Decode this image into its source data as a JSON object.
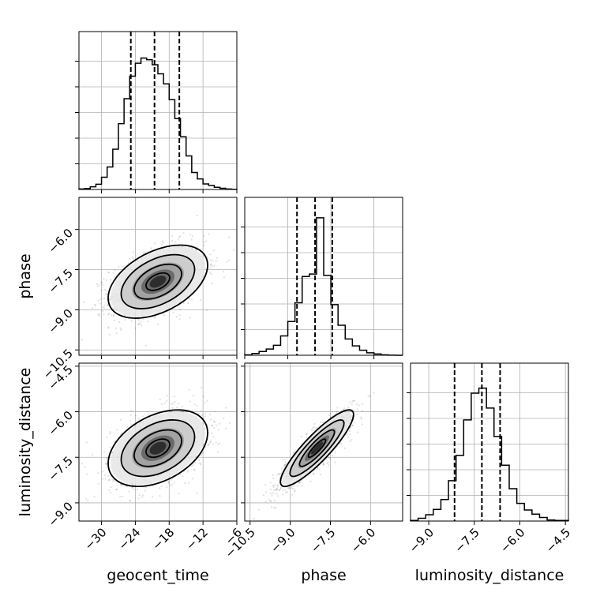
{
  "chart_data": {
    "type": "corner",
    "parameters": [
      "geocent_time",
      "phase",
      "luminosity_distance"
    ],
    "grid": true,
    "panels": {
      "hist_geocent_time": {
        "type": "histogram",
        "xlim": [
          -34,
          -6
        ],
        "bin_edges": [
          -34,
          -33,
          -32,
          -31,
          -30,
          -29,
          -28,
          -27,
          -26,
          -25,
          -24,
          -23,
          -22,
          -21,
          -20,
          -19,
          -18,
          -17,
          -16,
          -15,
          -14,
          -13,
          -12,
          -11,
          -10,
          -9,
          -8,
          -7,
          -6
        ],
        "counts": [
          0.2,
          0.4,
          1.1,
          2.2,
          5.1,
          9.4,
          16.8,
          27.5,
          37.9,
          47.3,
          52.7,
          54.9,
          54.2,
          52.1,
          48.3,
          44.1,
          37.5,
          29.6,
          22.0,
          14.0,
          7.1,
          4.4,
          2.3,
          1.7,
          0.9,
          0.5,
          0.2,
          0.1
        ],
        "ylim": [
          0,
          60
        ],
        "quantiles": [
          -24.8,
          -20.6,
          -16.2
        ]
      },
      "hist_phase": {
        "type": "histogram",
        "xlim": [
          -10.5,
          -5.0
        ],
        "bin_edges": [
          -10.5,
          -10.25,
          -10.0,
          -9.75,
          -9.5,
          -9.25,
          -9.0,
          -8.75,
          -8.5,
          -8.25,
          -8.0,
          -7.75,
          -7.5,
          -7.25,
          -7.0,
          -6.75,
          -6.5,
          -6.25,
          -6.0,
          -5.75,
          -5.5,
          -5.25,
          -5.0
        ],
        "counts": [
          0.3,
          1.4,
          3.0,
          5.0,
          8.0,
          15.5,
          27.0,
          42.0,
          63.0,
          65.0,
          110.0,
          64.0,
          40.5,
          24.0,
          13.0,
          7.5,
          4.0,
          2.0,
          1.0,
          0.3,
          0.1,
          0.0
        ],
        "ylim": [
          0,
          115
        ],
        "quantiles": [
          -8.68,
          -8.05,
          -7.45
        ]
      },
      "hist_luminosity_distance": {
        "type": "histogram",
        "xlim": [
          -9.6,
          -4.4
        ],
        "bin_edges": [
          -9.6,
          -9.35,
          -9.1,
          -8.85,
          -8.6,
          -8.35,
          -8.1,
          -7.85,
          -7.6,
          -7.35,
          -7.1,
          -6.85,
          -6.6,
          -6.35,
          -6.1,
          -5.85,
          -5.6,
          -5.35,
          -5.1,
          -4.85,
          -4.6,
          -4.4
        ],
        "counts": [
          0.2,
          1.0,
          2.3,
          4.2,
          7.8,
          14.6,
          23.8,
          36.6,
          46.3,
          48.1,
          40.9,
          30.6,
          20.2,
          11.7,
          6.4,
          4.0,
          2.5,
          1.3,
          0.4,
          0.2,
          0.2
        ],
        "ylim": [
          0,
          52
        ],
        "quantiles": [
          -8.15,
          -7.25,
          -6.65
        ]
      },
      "phase_vs_geocent_time": {
        "type": "2d_density",
        "xlim": [
          -34,
          -6
        ],
        "ylim": [
          -10.7,
          -4.8
        ],
        "mean": [
          -20.0,
          -7.95
        ],
        "std": [
          4.2,
          0.65
        ],
        "correlation": 0.45
      },
      "luminosity_distance_vs_geocent_time": {
        "type": "2d_density",
        "xlim": [
          -34,
          -6
        ],
        "ylim": [
          -9.6,
          -4.4
        ],
        "mean": [
          -20.0,
          -7.2
        ],
        "std": [
          4.2,
          0.6
        ],
        "correlation": 0.4
      },
      "luminosity_distance_vs_phase": {
        "type": "2d_density",
        "xlim": [
          -10.7,
          -4.8
        ],
        "ylim": [
          -9.6,
          -4.4
        ],
        "mean": [
          -8.0,
          -7.2
        ],
        "std": [
          0.65,
          0.6
        ],
        "correlation": 0.88
      }
    },
    "ticks": {
      "geocent_time": {
        "values": [
          -30,
          -24,
          -18,
          -12,
          -6
        ],
        "labels": [
          "−30",
          "−24",
          "−18",
          "−12",
          "−6"
        ]
      },
      "phase": {
        "values": [
          -10.5,
          -9.0,
          -7.5,
          -6.0
        ],
        "labels": [
          "−10.5",
          "−9.0",
          "−7.5",
          "−6.0"
        ]
      },
      "luminosity_distance": {
        "values": [
          -9.0,
          -7.5,
          -6.0,
          -4.5
        ],
        "labels": [
          "−9.0",
          "−7.5",
          "−6.0",
          "−4.5"
        ]
      }
    },
    "xlabels": [
      "geocent_time",
      "phase",
      "luminosity_distance"
    ],
    "ylabels": [
      "",
      "phase",
      "luminosity_distance"
    ]
  }
}
